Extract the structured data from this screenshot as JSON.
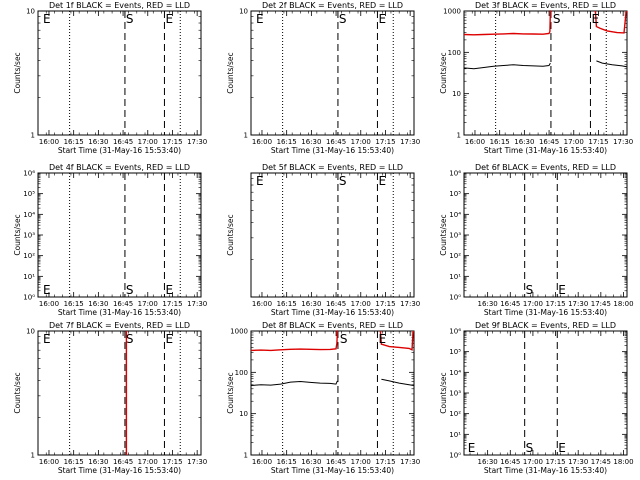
{
  "window_title": "",
  "chart_data": [
    {
      "type": "line",
      "title": "Det 1f BLACK = Events, RED = LLD",
      "xlabel": "Start Time (31-May-16 15:53:40)",
      "ylabel": "Counts/sec",
      "scale": "log",
      "ylim": [
        1,
        10
      ],
      "ytick_labels": [
        "1",
        "10"
      ],
      "xticks": [
        0.1111,
        0.3611,
        0.6111,
        0.8611,
        1.1111,
        1.3611,
        1.6111
      ],
      "xtick_labels": [
        "16:00",
        "16:15",
        "16:30",
        "16:45",
        "17:00",
        "17:15",
        "17:30"
      ],
      "xlim": [
        0,
        1.65
      ],
      "dotted_lines": [
        0.32,
        1.44
      ],
      "dashed_lines": [
        0.88,
        1.28
      ],
      "markers": [
        {
          "text": "E",
          "x": 0.04,
          "pos": "top"
        },
        {
          "text": "S",
          "x": 0.88,
          "pos": "top"
        },
        {
          "text": "E",
          "x": 1.28,
          "pos": "top"
        }
      ],
      "series": []
    },
    {
      "type": "line",
      "title": "Det 2f BLACK = Events, RED = LLD",
      "xlabel": "Start Time (31-May-16 15:53:40)",
      "ylabel": "Counts/sec",
      "scale": "log",
      "ylim": [
        1,
        10
      ],
      "ytick_labels": [
        "1",
        "10"
      ],
      "xticks": [
        0.1111,
        0.3611,
        0.6111,
        0.8611,
        1.1111,
        1.3611,
        1.6111
      ],
      "xtick_labels": [
        "16:00",
        "16:15",
        "16:30",
        "16:45",
        "17:00",
        "17:15",
        "17:30"
      ],
      "xlim": [
        0,
        1.65
      ],
      "dotted_lines": [
        0.32,
        1.44
      ],
      "dashed_lines": [
        0.88,
        1.28
      ],
      "markers": [
        {
          "text": "E",
          "x": 0.04,
          "pos": "top"
        },
        {
          "text": "S",
          "x": 0.88,
          "pos": "top"
        },
        {
          "text": "E",
          "x": 1.28,
          "pos": "top"
        }
      ],
      "series": []
    },
    {
      "type": "line",
      "title": "Det 3f BLACK = Events, RED = LLD",
      "xlabel": "Start Time (31-May-16 15:53:40)",
      "ylabel": "Counts/sec",
      "scale": "log",
      "ylim": [
        1,
        1000
      ],
      "ytick_labels": [
        "1",
        "10",
        "100",
        "1000"
      ],
      "xticks": [
        0.1111,
        0.3611,
        0.6111,
        0.8611,
        1.1111,
        1.3611,
        1.6111
      ],
      "xtick_labels": [
        "16:00",
        "16:15",
        "16:30",
        "16:45",
        "17:00",
        "17:15",
        "17:30"
      ],
      "xlim": [
        0,
        1.65
      ],
      "dotted_lines": [
        0.32,
        1.44
      ],
      "dashed_lines": [
        0.88,
        1.28
      ],
      "markers": [
        {
          "text": "S",
          "x": 0.89,
          "pos": "top"
        },
        {
          "text": "E",
          "x": 1.28,
          "pos": "top"
        }
      ],
      "series": [
        {
          "name": "Events",
          "color": "#000000",
          "points": [
            [
              0.0,
              42
            ],
            [
              0.1,
              40
            ],
            [
              0.2,
              43
            ],
            [
              0.3,
              46
            ],
            [
              0.4,
              48
            ],
            [
              0.5,
              50
            ],
            [
              0.6,
              48
            ],
            [
              0.7,
              47
            ],
            [
              0.8,
              46
            ],
            [
              0.86,
              48
            ],
            [
              0.875,
              55
            ],
            null,
            [
              1.34,
              62
            ],
            [
              1.4,
              55
            ],
            [
              1.5,
              50
            ],
            [
              1.6,
              47
            ],
            [
              1.645,
              45
            ]
          ]
        },
        {
          "name": "LLD",
          "color": "#dd0000",
          "points": [
            [
              0.0,
              270
            ],
            [
              0.1,
              265
            ],
            [
              0.2,
              270
            ],
            [
              0.3,
              275
            ],
            [
              0.4,
              280
            ],
            [
              0.5,
              285
            ],
            [
              0.6,
              280
            ],
            [
              0.7,
              278
            ],
            [
              0.8,
              275
            ],
            [
              0.86,
              285
            ],
            [
              0.87,
              320
            ],
            [
              0.875,
              1000
            ],
            [
              0.88,
              1000
            ],
            null,
            [
              1.33,
              1000
            ],
            [
              1.34,
              420
            ],
            [
              1.38,
              380
            ],
            [
              1.45,
              330
            ],
            [
              1.55,
              300
            ],
            [
              1.62,
              295
            ],
            [
              1.64,
              900
            ],
            [
              1.645,
              1000
            ]
          ]
        }
      ]
    },
    {
      "type": "line",
      "title": "Det 4f BLACK = Events, RED = LLD",
      "xlabel": "Start Time (31-May-16 15:53:40)",
      "ylabel": "Counts/sec",
      "scale": "log",
      "ylim": [
        1,
        1000000
      ],
      "ytick_labels": [
        "10⁰",
        "10¹",
        "10²",
        "10³",
        "10⁴",
        "10⁵",
        "10⁶"
      ],
      "xticks": [
        0.1111,
        0.3611,
        0.6111,
        0.8611,
        1.1111,
        1.3611,
        1.6111
      ],
      "xtick_labels": [
        "16:00",
        "16:15",
        "16:30",
        "16:45",
        "17:00",
        "17:15",
        "17:30"
      ],
      "xlim": [
        0,
        1.65
      ],
      "dotted_lines": [
        0.32,
        1.44
      ],
      "dashed_lines": [
        0.88,
        1.28
      ],
      "markers": [
        {
          "text": "E",
          "x": 0.04,
          "pos": "bottom"
        },
        {
          "text": "S",
          "x": 0.88,
          "pos": "bottom"
        },
        {
          "text": "E",
          "x": 1.28,
          "pos": "bottom"
        }
      ],
      "series": []
    },
    {
      "type": "line",
      "title": "Det 5f BLACK = Events, RED = LLD",
      "xlabel": "Start Time (31-May-16 15:53:40)",
      "ylabel": "Counts/sec",
      "scale": "log",
      "ylim": [
        1,
        10
      ],
      "ytick_labels": [],
      "xticks": [
        0.1111,
        0.3611,
        0.6111,
        0.8611,
        1.1111,
        1.3611,
        1.6111
      ],
      "xtick_labels": [
        "16:00",
        "16:15",
        "16:30",
        "16:45",
        "17:00",
        "17:15",
        "17:30"
      ],
      "xlim": [
        0,
        1.65
      ],
      "dotted_lines": [
        0.32,
        1.44
      ],
      "dashed_lines": [
        0.88,
        1.28
      ],
      "markers": [
        {
          "text": "E",
          "x": 0.04,
          "pos": "top"
        },
        {
          "text": "S",
          "x": 0.88,
          "pos": "top"
        },
        {
          "text": "E",
          "x": 1.28,
          "pos": "top"
        }
      ],
      "series": []
    },
    {
      "type": "line",
      "title": "Det 6f BLACK = Events, RED = LLD",
      "xlabel": "Start Time (31-May-16 15:53:40)",
      "ylabel": "Counts/sec",
      "scale": "log",
      "ylim": [
        1,
        1000000
      ],
      "ytick_labels": [
        "10⁰",
        "10¹",
        "10²",
        "10³",
        "10⁴",
        "10⁵",
        "10⁶"
      ],
      "xticks": [
        0.6111,
        0.8611,
        1.1111,
        1.3611,
        1.6111,
        1.8611,
        2.1111
      ],
      "xtick_labels": [
        "16:30",
        "16:45",
        "17:00",
        "17:15",
        "17:30",
        "17:45",
        "18:00"
      ],
      "xlim": [
        0.35,
        2.15
      ],
      "dotted_lines": [],
      "dashed_lines": [
        1.02,
        1.38
      ],
      "markers": [
        {
          "text": "S",
          "x": 1.02,
          "pos": "bottom"
        },
        {
          "text": "E",
          "x": 1.38,
          "pos": "bottom"
        }
      ],
      "series": []
    },
    {
      "type": "line",
      "title": "Det 7f BLACK = Events, RED = LLD",
      "xlabel": "Start Time (31-May-16 15:53:40)",
      "ylabel": "Counts/sec",
      "scale": "log",
      "ylim": [
        1,
        10
      ],
      "ytick_labels": [
        "1",
        "10"
      ],
      "xticks": [
        0.1111,
        0.3611,
        0.6111,
        0.8611,
        1.1111,
        1.3611,
        1.6111
      ],
      "xtick_labels": [
        "16:00",
        "16:15",
        "16:30",
        "16:45",
        "17:00",
        "17:15",
        "17:30"
      ],
      "xlim": [
        0,
        1.65
      ],
      "dotted_lines": [
        0.32,
        1.44
      ],
      "dashed_lines": [
        0.88,
        1.28
      ],
      "markers": [
        {
          "text": "E",
          "x": 0.04,
          "pos": "top"
        },
        {
          "text": "S",
          "x": 0.88,
          "pos": "top"
        },
        {
          "text": "E",
          "x": 1.28,
          "pos": "top"
        }
      ],
      "series": [
        {
          "name": "LLD",
          "color": "#dd0000",
          "points": [
            [
              0.895,
              10
            ],
            [
              0.895,
              1
            ]
          ]
        }
      ]
    },
    {
      "type": "line",
      "title": "Det 8f BLACK = Events, RED = LLD",
      "xlabel": "Start Time (31-May-16 15:53:40)",
      "ylabel": "Counts/sec",
      "scale": "log",
      "ylim": [
        1,
        1000
      ],
      "ytick_labels": [
        "1",
        "10",
        "100",
        "1000"
      ],
      "xticks": [
        0.1111,
        0.3611,
        0.6111,
        0.8611,
        1.1111,
        1.3611,
        1.6111
      ],
      "xtick_labels": [
        "16:00",
        "16:15",
        "16:30",
        "16:45",
        "17:00",
        "17:15",
        "17:30"
      ],
      "xlim": [
        0,
        1.65
      ],
      "dotted_lines": [
        0.32,
        1.44
      ],
      "dashed_lines": [
        0.88,
        1.28
      ],
      "markers": [
        {
          "text": "S",
          "x": 0.89,
          "pos": "top"
        },
        {
          "text": "E",
          "x": 1.28,
          "pos": "top"
        }
      ],
      "series": [
        {
          "name": "Events",
          "color": "#000000",
          "points": [
            [
              0.0,
              48
            ],
            [
              0.1,
              50
            ],
            [
              0.2,
              49
            ],
            [
              0.3,
              52
            ],
            [
              0.4,
              58
            ],
            [
              0.5,
              60
            ],
            [
              0.6,
              57
            ],
            [
              0.7,
              55
            ],
            [
              0.8,
              54
            ],
            [
              0.86,
              52
            ],
            [
              0.875,
              62
            ],
            null,
            [
              1.32,
              68
            ],
            [
              1.4,
              62
            ],
            [
              1.5,
              55
            ],
            [
              1.6,
              50
            ],
            [
              1.645,
              48
            ]
          ]
        },
        {
          "name": "LLD",
          "color": "#dd0000",
          "points": [
            [
              0.0,
              340
            ],
            [
              0.1,
              345
            ],
            [
              0.2,
              340
            ],
            [
              0.3,
              350
            ],
            [
              0.4,
              360
            ],
            [
              0.5,
              365
            ],
            [
              0.6,
              360
            ],
            [
              0.7,
              355
            ],
            [
              0.8,
              358
            ],
            [
              0.86,
              370
            ],
            [
              0.87,
              500
            ],
            [
              0.875,
              1000
            ],
            [
              0.88,
              1000
            ],
            null,
            [
              1.31,
              1000
            ],
            [
              1.32,
              480
            ],
            [
              1.4,
              420
            ],
            [
              1.5,
              400
            ],
            [
              1.6,
              380
            ],
            [
              1.63,
              350
            ],
            [
              1.64,
              900
            ],
            [
              1.645,
              1000
            ]
          ]
        }
      ]
    },
    {
      "type": "line",
      "title": "Det 9f BLACK = Events, RED = LLD",
      "xlabel": "Start Time (31-May-16 15:53:40)",
      "ylabel": "Counts/sec",
      "scale": "log",
      "ylim": [
        1,
        1000000
      ],
      "ytick_labels": [
        "10⁰",
        "10¹",
        "10²",
        "10³",
        "10⁴",
        "10⁵",
        "10⁶"
      ],
      "xticks": [
        0.6111,
        0.8611,
        1.1111,
        1.3611,
        1.6111,
        1.8611,
        2.1111
      ],
      "xtick_labels": [
        "16:30",
        "16:45",
        "17:00",
        "17:15",
        "17:30",
        "17:45",
        "18:00"
      ],
      "xlim": [
        0.35,
        2.15
      ],
      "dotted_lines": [],
      "dashed_lines": [
        1.02,
        1.38
      ],
      "markers": [
        {
          "text": "E",
          "x": 0.38,
          "pos": "bottom"
        },
        {
          "text": "S",
          "x": 1.02,
          "pos": "bottom"
        },
        {
          "text": "E",
          "x": 1.38,
          "pos": "bottom"
        }
      ],
      "series": []
    }
  ]
}
